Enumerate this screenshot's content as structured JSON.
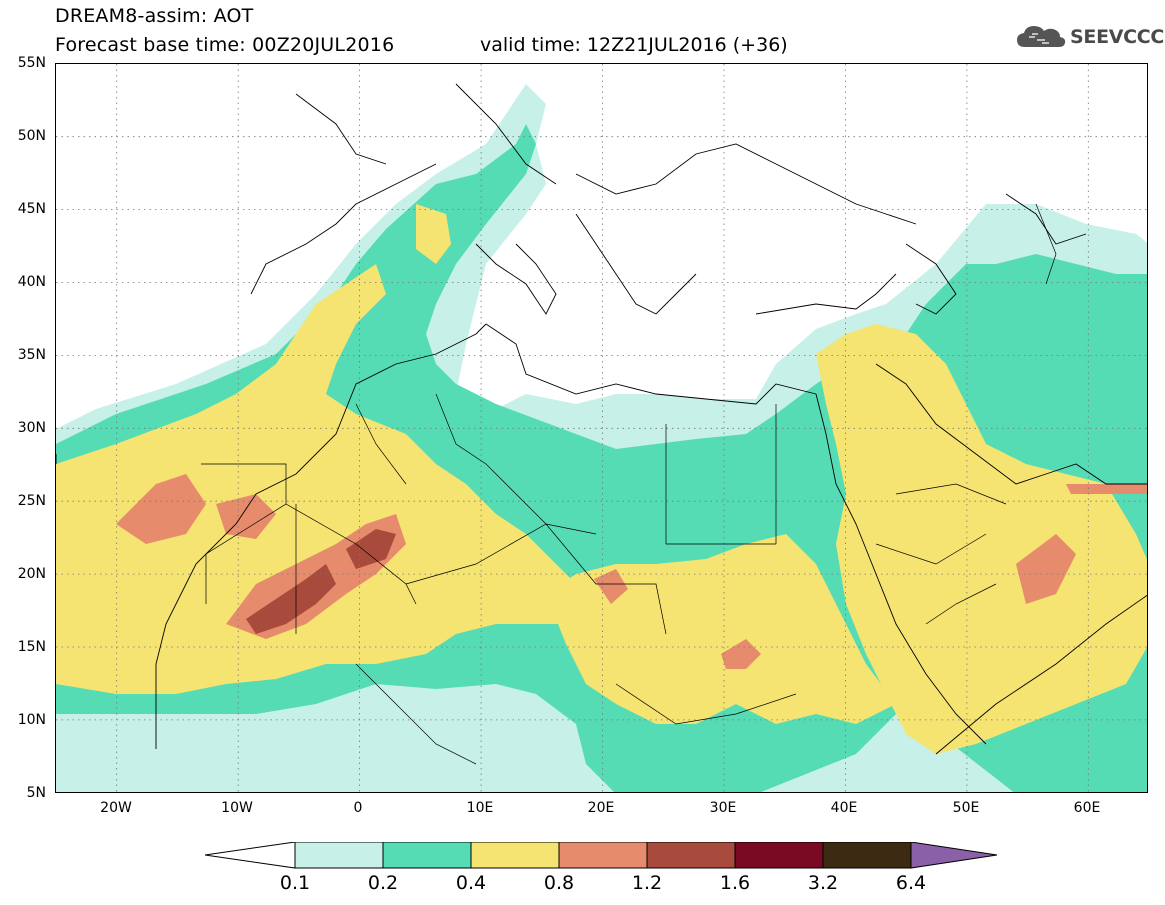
{
  "header": {
    "title_line1": "DREAM8-assim: AOT",
    "title_line2": "Forecast base time: 00Z20JUL2016",
    "valid_time": "valid time: 12Z21JUL2016 (+36)",
    "logo_text": "SEEVCCC",
    "logo_icon": "cloud-icon"
  },
  "map": {
    "variable": "AOT",
    "projection": "lat-lon",
    "lon_range": [
      -25,
      65
    ],
    "lat_range": [
      5,
      55
    ],
    "grid": "dotted",
    "lat_labels": [
      "55N",
      "50N",
      "45N",
      "40N",
      "35N",
      "30N",
      "25N",
      "20N",
      "15N",
      "10N",
      "5N"
    ],
    "lon_labels": [
      "20W",
      "10W",
      "0",
      "10E",
      "20E",
      "30E",
      "40E",
      "50E",
      "60E"
    ]
  },
  "colorbar": {
    "levels": [
      "0.1",
      "0.2",
      "0.4",
      "0.8",
      "1.2",
      "1.6",
      "3.2",
      "6.4"
    ],
    "colors": [
      "#ffffff",
      "#c6f0e8",
      "#55dcb5",
      "#f5e471",
      "#e68b6b",
      "#a84a3c",
      "#7a0a24",
      "#3d2a12",
      "#8a60a8"
    ]
  }
}
